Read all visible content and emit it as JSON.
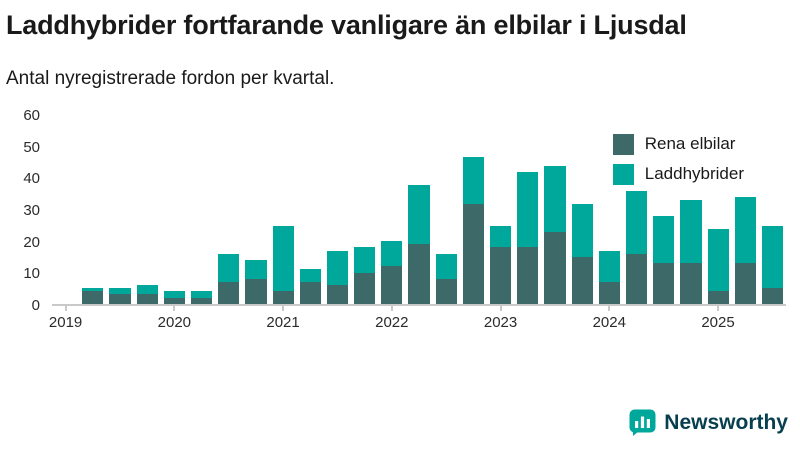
{
  "header": {
    "title": "Laddhybrider fortfarande vanligare än elbilar i Ljusdal",
    "subtitle": "Antal nyregistrerade fordon per kvartal."
  },
  "chart_data": {
    "type": "bar",
    "stacked": true,
    "title": "Laddhybrider fortfarande vanligare än elbilar i Ljusdal",
    "subtitle": "Antal nyregistrerade fordon per kvartal.",
    "categories": [
      "2019 Q1",
      "2019 Q2",
      "2019 Q3",
      "2019 Q4",
      "2020 Q1",
      "2020 Q2",
      "2020 Q3",
      "2020 Q4",
      "2021 Q1",
      "2021 Q2",
      "2021 Q3",
      "2021 Q4",
      "2022 Q1",
      "2022 Q2",
      "2022 Q3",
      "2022 Q4",
      "2023 Q1",
      "2023 Q2",
      "2023 Q3",
      "2023 Q4",
      "2024 Q1",
      "2024 Q2",
      "2024 Q3",
      "2024 Q4",
      "2025 Q1",
      "2025 Q2",
      "2025 Q3"
    ],
    "series": [
      {
        "name": "Rena elbilar",
        "color": "#3d6a69",
        "values": [
          0,
          4,
          3,
          3,
          2,
          2,
          7,
          8,
          4,
          7,
          6,
          10,
          12,
          19,
          8,
          32,
          18,
          18,
          23,
          15,
          7,
          16,
          13,
          13,
          4,
          13,
          5
        ]
      },
      {
        "name": "Laddhybrider",
        "color": "#00a79b",
        "values": [
          0,
          1,
          2,
          3,
          2,
          2,
          9,
          6,
          21,
          4,
          11,
          8,
          8,
          19,
          8,
          15,
          7,
          24,
          21,
          17,
          10,
          20,
          15,
          20,
          20,
          21,
          20
        ]
      }
    ],
    "xlabel": "",
    "ylabel": "",
    "ylim": [
      0,
      60
    ],
    "yticks": [
      0,
      10,
      20,
      30,
      40,
      50,
      60
    ],
    "xticks": [
      "2019",
      "2020",
      "2021",
      "2022",
      "2023",
      "2024",
      "2025"
    ],
    "legend_position": "top-right",
    "grid": false,
    "axis_color": "#c9c9c9"
  },
  "footer": {
    "brand": "Newsworthy",
    "brand_color": "#073f4e",
    "icon_color": "#00a79b"
  }
}
